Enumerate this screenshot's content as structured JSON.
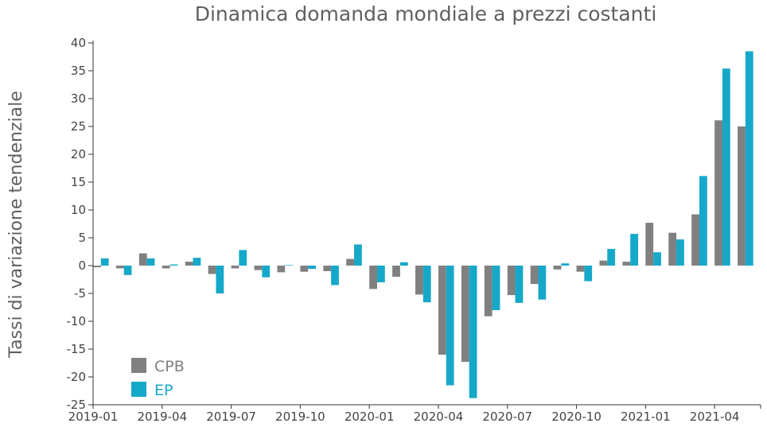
{
  "chart_data": {
    "type": "bar",
    "title": "Dinamica domanda mondiale a prezzi costanti",
    "xlabel": "",
    "ylabel": "Tassi di variazione tendenziale",
    "ylim": [
      -25,
      40
    ],
    "yticks": [
      40,
      35,
      30,
      25,
      20,
      15,
      10,
      5,
      0,
      -5,
      -10,
      -15,
      -20,
      -25
    ],
    "xticks": [
      {
        "index": 0,
        "label": "2019-01"
      },
      {
        "index": 3,
        "label": "2019-04"
      },
      {
        "index": 6,
        "label": "2019-07"
      },
      {
        "index": 9,
        "label": "2019-10"
      },
      {
        "index": 12,
        "label": "2020-01"
      },
      {
        "index": 15,
        "label": "2020-04"
      },
      {
        "index": 18,
        "label": "2020-07"
      },
      {
        "index": 21,
        "label": "2020-10"
      },
      {
        "index": 24,
        "label": "2021-01"
      },
      {
        "index": 27,
        "label": "2021-04"
      }
    ],
    "categories": [
      "2019-01",
      "2019-02",
      "2019-03",
      "2019-04",
      "2019-05",
      "2019-06",
      "2019-07",
      "2019-08",
      "2019-09",
      "2019-10",
      "2019-11",
      "2019-12",
      "2020-01",
      "2020-02",
      "2020-03",
      "2020-04",
      "2020-05",
      "2020-06",
      "2020-07",
      "2020-08",
      "2020-09",
      "2020-10",
      "2020-11",
      "2020-12",
      "2021-01",
      "2021-02",
      "2021-03",
      "2021-04",
      "2021-05"
    ],
    "series": [
      {
        "name": "CPB",
        "color": "#808080",
        "values": [
          -0.3,
          -0.5,
          2.2,
          -0.5,
          0.7,
          -1.5,
          -0.5,
          -0.8,
          -1.2,
          -1.1,
          -1.0,
          1.2,
          -4.2,
          -2.0,
          -5.2,
          -16.0,
          -17.3,
          -9.1,
          -5.3,
          -3.3,
          -0.7,
          -1.1,
          0.9,
          0.7,
          7.7,
          5.9,
          9.2,
          26.1,
          25.0
        ]
      },
      {
        "name": "EP",
        "color": "#16a8c9",
        "values": [
          1.3,
          -1.7,
          1.3,
          0.2,
          1.4,
          -5.0,
          2.8,
          -2.1,
          0.1,
          -0.6,
          -3.5,
          3.8,
          -3.0,
          0.6,
          -6.6,
          -21.5,
          -23.8,
          -8.0,
          -6.7,
          -6.1,
          0.4,
          -2.8,
          3.0,
          5.7,
          2.4,
          4.7,
          16.1,
          35.4,
          38.5
        ]
      }
    ],
    "legend": {
      "placement": "bottom-left"
    },
    "grid": false
  }
}
